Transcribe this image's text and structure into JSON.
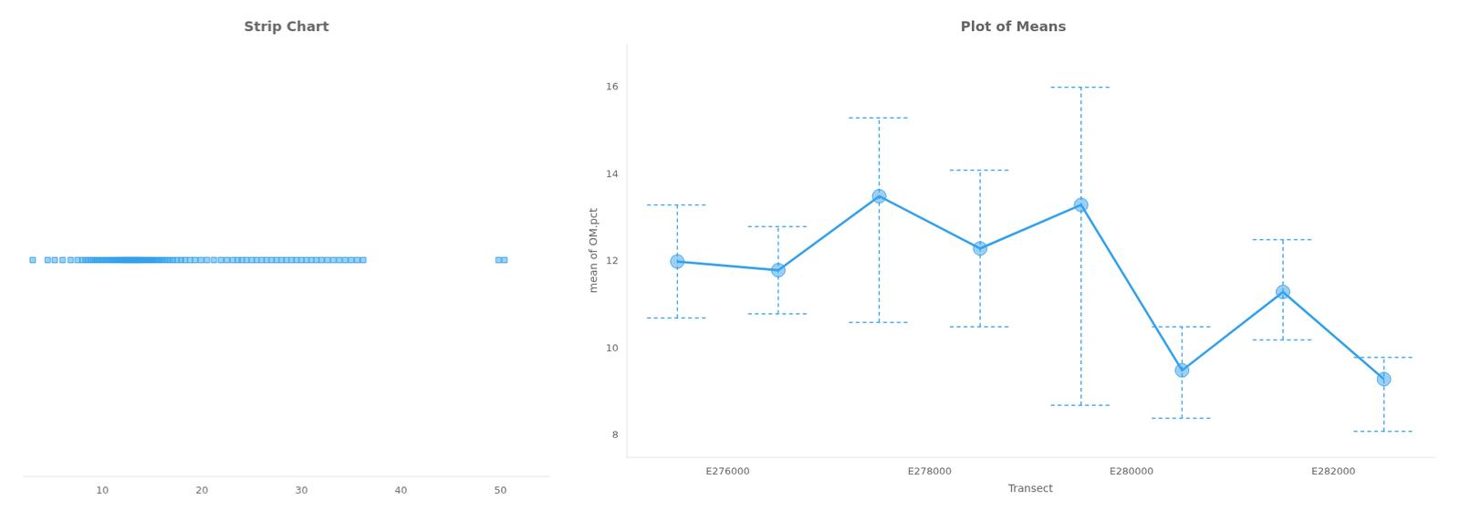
{
  "chart_data": [
    {
      "type": "strip",
      "title": "Strip Chart",
      "values": [
        3.0,
        4.5,
        5.2,
        6.0,
        6.8,
        7.5,
        8.0,
        8.3,
        8.6,
        8.9,
        9.1,
        9.3,
        9.5,
        9.7,
        9.9,
        10.1,
        10.3,
        10.5,
        10.7,
        10.9,
        11.0,
        11.1,
        11.2,
        11.3,
        11.4,
        11.5,
        11.6,
        11.7,
        11.8,
        11.9,
        12.0,
        12.05,
        12.1,
        12.15,
        12.2,
        12.25,
        12.3,
        12.35,
        12.4,
        12.45,
        12.5,
        12.55,
        12.6,
        12.65,
        12.7,
        12.75,
        12.8,
        12.85,
        12.9,
        12.95,
        13.0,
        13.05,
        13.1,
        13.15,
        13.2,
        13.25,
        13.3,
        13.35,
        13.4,
        13.45,
        13.5,
        13.55,
        13.6,
        13.65,
        13.7,
        13.75,
        13.8,
        13.85,
        13.9,
        13.95,
        14.0,
        14.1,
        14.2,
        14.3,
        14.4,
        14.5,
        14.6,
        14.7,
        14.8,
        14.9,
        15.0,
        15.1,
        15.2,
        15.4,
        15.6,
        15.8,
        16.0,
        16.2,
        16.5,
        16.8,
        17.1,
        17.5,
        17.9,
        18.3,
        18.8,
        19.3,
        19.9,
        20.5,
        21.2,
        21.9,
        22.5,
        23.1,
        23.6,
        24.0,
        24.5,
        25.0,
        25.5,
        26.0,
        26.5,
        27.0,
        27.5,
        28.0,
        28.5,
        29.0,
        29.5,
        30.0,
        30.5,
        31.0,
        31.5,
        32.0,
        32.6,
        33.2,
        33.8,
        34.4,
        35.0,
        35.6,
        36.2,
        49.8,
        50.4
      ],
      "xlim": [
        2,
        55
      ],
      "xticks": [
        10,
        20,
        30,
        40,
        50
      ],
      "tick_labels": "x",
      "marker": "square",
      "grid": false
    },
    {
      "type": "line",
      "title": "Plot of Means",
      "xlabel": "Transect",
      "ylabel": "mean of OM.pct",
      "categories": [
        "E276000",
        null,
        "E278000",
        null,
        "E280000",
        null,
        "E282000",
        null
      ],
      "values": [
        12.0,
        11.8,
        13.5,
        12.3,
        13.3,
        9.5,
        11.3,
        9.3
      ],
      "ci_upper": [
        13.3,
        12.8,
        15.3,
        14.1,
        16.0,
        10.5,
        12.5,
        9.8
      ],
      "ci_lower": [
        10.7,
        10.8,
        10.6,
        10.5,
        8.7,
        8.4,
        10.2,
        8.1
      ],
      "ylim": [
        7.5,
        17.0
      ],
      "yticks": [
        8,
        10,
        12,
        14,
        16
      ],
      "marker": "circle",
      "grid": false
    }
  ]
}
